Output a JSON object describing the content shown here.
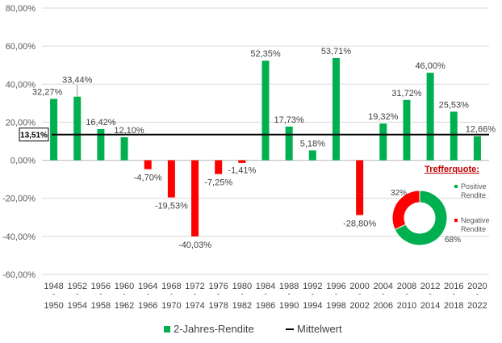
{
  "chart_data": {
    "type": "bar",
    "categories": [
      [
        "1948",
        "-",
        "1950"
      ],
      [
        "1952",
        "-",
        "1954"
      ],
      [
        "1956",
        "-",
        "1958"
      ],
      [
        "1960",
        "-",
        "1962"
      ],
      [
        "1964",
        "-",
        "1966"
      ],
      [
        "1968",
        "-",
        "1970"
      ],
      [
        "1972",
        "-",
        "1974"
      ],
      [
        "1976",
        "-",
        "1978"
      ],
      [
        "1980",
        "-",
        "1982"
      ],
      [
        "1984",
        "-",
        "1986"
      ],
      [
        "1988",
        "-",
        "1990"
      ],
      [
        "1992",
        "-",
        "1994"
      ],
      [
        "1996",
        "-",
        "1998"
      ],
      [
        "2000",
        "-",
        "2002"
      ],
      [
        "2004",
        "-",
        "2006"
      ],
      [
        "2008",
        "-",
        "2010"
      ],
      [
        "2012",
        "-",
        "2014"
      ],
      [
        "2016",
        "-",
        "2018"
      ],
      [
        "2020",
        "-",
        "2022"
      ]
    ],
    "values": [
      32.27,
      33.44,
      16.42,
      12.1,
      -4.7,
      -19.53,
      -40.03,
      -7.25,
      -1.41,
      52.35,
      17.73,
      5.18,
      53.71,
      -28.8,
      19.32,
      31.72,
      46.0,
      25.53,
      12.66
    ],
    "value_labels": [
      "32,27%",
      "33,44%",
      "16,42%",
      "12,10%",
      "-4,70%",
      "-19,53%",
      "-40,03%",
      "-7,25%",
      "-1,41%",
      "52,35%",
      "17,73%",
      "5,18%",
      "53,71%",
      "-28,80%",
      "19,32%",
      "31,72%",
      "46,00%",
      "25,53%",
      "12,66%"
    ],
    "ylim": [
      -60,
      80
    ],
    "yticks": [
      -60,
      -40,
      -20,
      0,
      20,
      40,
      60,
      80
    ],
    "ytick_labels": [
      "-60,00%",
      "-40,00%",
      "-20,00%",
      "0,00%",
      "20,00%",
      "40,00%",
      "60,00%",
      "80,00%"
    ],
    "mean": 13.51,
    "mean_label": "13,51%",
    "series": [
      {
        "name": "2-Jahres-Rendite",
        "color": "#00B050"
      },
      {
        "name": "Mittelwert",
        "color": "#000000"
      }
    ],
    "negative_color": "#FF0000",
    "title": "",
    "xlabel": "",
    "ylabel": ""
  },
  "inset": {
    "type": "pie",
    "title": "Trefferquote:",
    "slices": [
      {
        "name": "Positive Rendite",
        "lines": [
          "Positive",
          "Rendite"
        ],
        "value": 68,
        "label": "68%",
        "color": "#00B050"
      },
      {
        "name": "Negative Rendite",
        "lines": [
          "Negative",
          "Rendite"
        ],
        "value": 32,
        "label": "32%",
        "color": "#FF0000"
      }
    ]
  }
}
